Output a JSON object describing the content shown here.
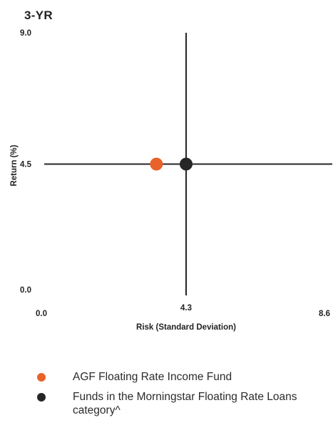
{
  "period_label": "3-YR",
  "chart_data": {
    "type": "scatter",
    "xlabel": "Risk (Standard Deviation)",
    "ylabel": "Return (%)",
    "xlim": [
      0.0,
      8.6
    ],
    "ylim": [
      0.0,
      9.0
    ],
    "x_ticks": [
      "0.0",
      "4.3",
      "8.6"
    ],
    "y_ticks": [
      "9.0",
      "4.5",
      "0.0"
    ],
    "crosshair": {
      "x": 4.3,
      "y": 4.5
    },
    "series": [
      {
        "name": "AGF Floating Rate Income Fund",
        "x": 3.4,
        "y": 4.5,
        "color": "#e8622a"
      },
      {
        "name": "Funds in the Morningstar Floating Rate Loans category^",
        "x": 4.3,
        "y": 4.5,
        "color": "#262626"
      }
    ],
    "grid": false
  }
}
